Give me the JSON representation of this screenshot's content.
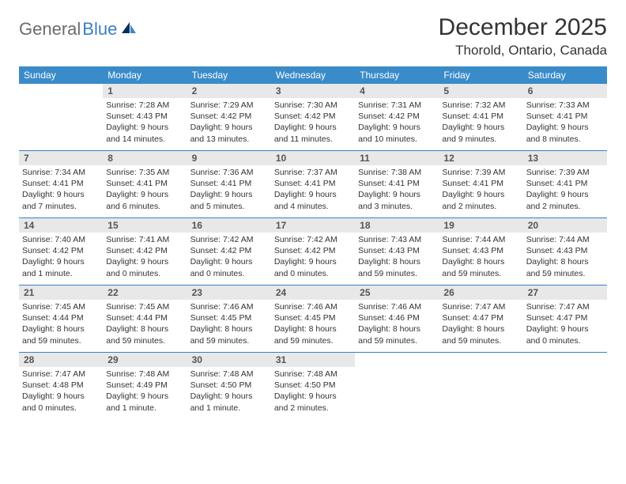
{
  "brand": {
    "part1": "General",
    "part2": "Blue"
  },
  "title": "December 2025",
  "location": "Thorold, Ontario, Canada",
  "colors": {
    "header_bg": "#3a8bc9",
    "border": "#3a7fc4",
    "daynum_bg": "#e8e8e8",
    "logo_gray": "#6b6b6b",
    "logo_blue": "#3a7fc4",
    "text": "#333333",
    "white": "#ffffff"
  },
  "days_of_week": [
    "Sunday",
    "Monday",
    "Tuesday",
    "Wednesday",
    "Thursday",
    "Friday",
    "Saturday"
  ],
  "weeks": [
    [
      {
        "n": "",
        "l1": "",
        "l2": "",
        "l3": "",
        "l4": "",
        "empty": true
      },
      {
        "n": "1",
        "l1": "Sunrise: 7:28 AM",
        "l2": "Sunset: 4:43 PM",
        "l3": "Daylight: 9 hours",
        "l4": "and 14 minutes."
      },
      {
        "n": "2",
        "l1": "Sunrise: 7:29 AM",
        "l2": "Sunset: 4:42 PM",
        "l3": "Daylight: 9 hours",
        "l4": "and 13 minutes."
      },
      {
        "n": "3",
        "l1": "Sunrise: 7:30 AM",
        "l2": "Sunset: 4:42 PM",
        "l3": "Daylight: 9 hours",
        "l4": "and 11 minutes."
      },
      {
        "n": "4",
        "l1": "Sunrise: 7:31 AM",
        "l2": "Sunset: 4:42 PM",
        "l3": "Daylight: 9 hours",
        "l4": "and 10 minutes."
      },
      {
        "n": "5",
        "l1": "Sunrise: 7:32 AM",
        "l2": "Sunset: 4:41 PM",
        "l3": "Daylight: 9 hours",
        "l4": "and 9 minutes."
      },
      {
        "n": "6",
        "l1": "Sunrise: 7:33 AM",
        "l2": "Sunset: 4:41 PM",
        "l3": "Daylight: 9 hours",
        "l4": "and 8 minutes."
      }
    ],
    [
      {
        "n": "7",
        "l1": "Sunrise: 7:34 AM",
        "l2": "Sunset: 4:41 PM",
        "l3": "Daylight: 9 hours",
        "l4": "and 7 minutes."
      },
      {
        "n": "8",
        "l1": "Sunrise: 7:35 AM",
        "l2": "Sunset: 4:41 PM",
        "l3": "Daylight: 9 hours",
        "l4": "and 6 minutes."
      },
      {
        "n": "9",
        "l1": "Sunrise: 7:36 AM",
        "l2": "Sunset: 4:41 PM",
        "l3": "Daylight: 9 hours",
        "l4": "and 5 minutes."
      },
      {
        "n": "10",
        "l1": "Sunrise: 7:37 AM",
        "l2": "Sunset: 4:41 PM",
        "l3": "Daylight: 9 hours",
        "l4": "and 4 minutes."
      },
      {
        "n": "11",
        "l1": "Sunrise: 7:38 AM",
        "l2": "Sunset: 4:41 PM",
        "l3": "Daylight: 9 hours",
        "l4": "and 3 minutes."
      },
      {
        "n": "12",
        "l1": "Sunrise: 7:39 AM",
        "l2": "Sunset: 4:41 PM",
        "l3": "Daylight: 9 hours",
        "l4": "and 2 minutes."
      },
      {
        "n": "13",
        "l1": "Sunrise: 7:39 AM",
        "l2": "Sunset: 4:41 PM",
        "l3": "Daylight: 9 hours",
        "l4": "and 2 minutes."
      }
    ],
    [
      {
        "n": "14",
        "l1": "Sunrise: 7:40 AM",
        "l2": "Sunset: 4:42 PM",
        "l3": "Daylight: 9 hours",
        "l4": "and 1 minute."
      },
      {
        "n": "15",
        "l1": "Sunrise: 7:41 AM",
        "l2": "Sunset: 4:42 PM",
        "l3": "Daylight: 9 hours",
        "l4": "and 0 minutes."
      },
      {
        "n": "16",
        "l1": "Sunrise: 7:42 AM",
        "l2": "Sunset: 4:42 PM",
        "l3": "Daylight: 9 hours",
        "l4": "and 0 minutes."
      },
      {
        "n": "17",
        "l1": "Sunrise: 7:42 AM",
        "l2": "Sunset: 4:42 PM",
        "l3": "Daylight: 9 hours",
        "l4": "and 0 minutes."
      },
      {
        "n": "18",
        "l1": "Sunrise: 7:43 AM",
        "l2": "Sunset: 4:43 PM",
        "l3": "Daylight: 8 hours",
        "l4": "and 59 minutes."
      },
      {
        "n": "19",
        "l1": "Sunrise: 7:44 AM",
        "l2": "Sunset: 4:43 PM",
        "l3": "Daylight: 8 hours",
        "l4": "and 59 minutes."
      },
      {
        "n": "20",
        "l1": "Sunrise: 7:44 AM",
        "l2": "Sunset: 4:43 PM",
        "l3": "Daylight: 8 hours",
        "l4": "and 59 minutes."
      }
    ],
    [
      {
        "n": "21",
        "l1": "Sunrise: 7:45 AM",
        "l2": "Sunset: 4:44 PM",
        "l3": "Daylight: 8 hours",
        "l4": "and 59 minutes."
      },
      {
        "n": "22",
        "l1": "Sunrise: 7:45 AM",
        "l2": "Sunset: 4:44 PM",
        "l3": "Daylight: 8 hours",
        "l4": "and 59 minutes."
      },
      {
        "n": "23",
        "l1": "Sunrise: 7:46 AM",
        "l2": "Sunset: 4:45 PM",
        "l3": "Daylight: 8 hours",
        "l4": "and 59 minutes."
      },
      {
        "n": "24",
        "l1": "Sunrise: 7:46 AM",
        "l2": "Sunset: 4:45 PM",
        "l3": "Daylight: 8 hours",
        "l4": "and 59 minutes."
      },
      {
        "n": "25",
        "l1": "Sunrise: 7:46 AM",
        "l2": "Sunset: 4:46 PM",
        "l3": "Daylight: 8 hours",
        "l4": "and 59 minutes."
      },
      {
        "n": "26",
        "l1": "Sunrise: 7:47 AM",
        "l2": "Sunset: 4:47 PM",
        "l3": "Daylight: 8 hours",
        "l4": "and 59 minutes."
      },
      {
        "n": "27",
        "l1": "Sunrise: 7:47 AM",
        "l2": "Sunset: 4:47 PM",
        "l3": "Daylight: 9 hours",
        "l4": "and 0 minutes."
      }
    ],
    [
      {
        "n": "28",
        "l1": "Sunrise: 7:47 AM",
        "l2": "Sunset: 4:48 PM",
        "l3": "Daylight: 9 hours",
        "l4": "and 0 minutes."
      },
      {
        "n": "29",
        "l1": "Sunrise: 7:48 AM",
        "l2": "Sunset: 4:49 PM",
        "l3": "Daylight: 9 hours",
        "l4": "and 1 minute."
      },
      {
        "n": "30",
        "l1": "Sunrise: 7:48 AM",
        "l2": "Sunset: 4:50 PM",
        "l3": "Daylight: 9 hours",
        "l4": "and 1 minute."
      },
      {
        "n": "31",
        "l1": "Sunrise: 7:48 AM",
        "l2": "Sunset: 4:50 PM",
        "l3": "Daylight: 9 hours",
        "l4": "and 2 minutes."
      },
      {
        "n": "",
        "l1": "",
        "l2": "",
        "l3": "",
        "l4": "",
        "empty": true
      },
      {
        "n": "",
        "l1": "",
        "l2": "",
        "l3": "",
        "l4": "",
        "empty": true
      },
      {
        "n": "",
        "l1": "",
        "l2": "",
        "l3": "",
        "l4": "",
        "empty": true
      }
    ]
  ]
}
